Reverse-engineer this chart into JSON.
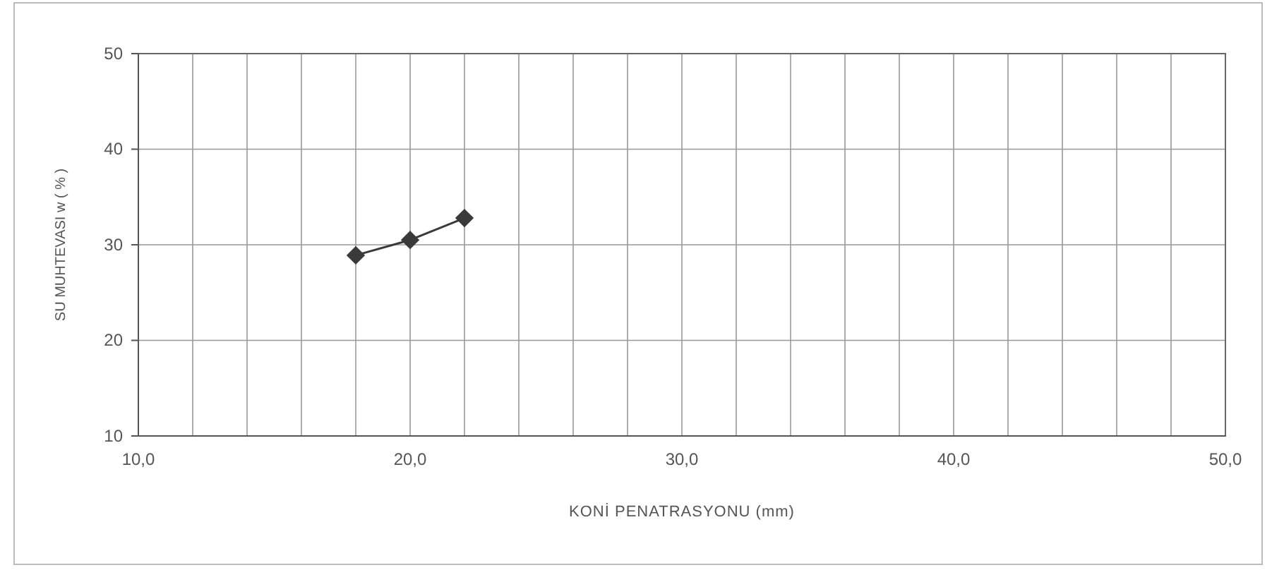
{
  "chart_data": {
    "type": "line",
    "xlabel": "KONİ PENATRASYONU (mm)",
    "ylabel": "SU MUHTEVASI  w ( % )",
    "x": [
      18,
      20,
      22
    ],
    "series": [
      {
        "color": "#3a3a3a",
        "values": [
          28.9,
          30.5,
          32.8
        ]
      }
    ],
    "xlim": [
      10,
      50
    ],
    "xticks": [
      {
        "value": 10,
        "label": "10,0"
      },
      {
        "value": 12,
        "label": null
      },
      {
        "value": 14,
        "label": null
      },
      {
        "value": 16,
        "label": null
      },
      {
        "value": 18,
        "label": null
      },
      {
        "value": 20,
        "label": "20,0"
      },
      {
        "value": 22,
        "label": null
      },
      {
        "value": 24,
        "label": null
      },
      {
        "value": 26,
        "label": null
      },
      {
        "value": 28,
        "label": null
      },
      {
        "value": 30,
        "label": "30,0"
      },
      {
        "value": 32,
        "label": null
      },
      {
        "value": 34,
        "label": null
      },
      {
        "value": 36,
        "label": null
      },
      {
        "value": 38,
        "label": null
      },
      {
        "value": 40,
        "label": "40,0"
      },
      {
        "value": 42,
        "label": null
      },
      {
        "value": 44,
        "label": null
      },
      {
        "value": 46,
        "label": null
      },
      {
        "value": 48,
        "label": null
      },
      {
        "value": 50,
        "label": "50,0"
      }
    ],
    "ylim": [
      10,
      50
    ],
    "yticks": [
      10,
      20,
      30,
      40,
      50
    ],
    "grid": true,
    "marker": "diamond",
    "line_style": "solid"
  }
}
